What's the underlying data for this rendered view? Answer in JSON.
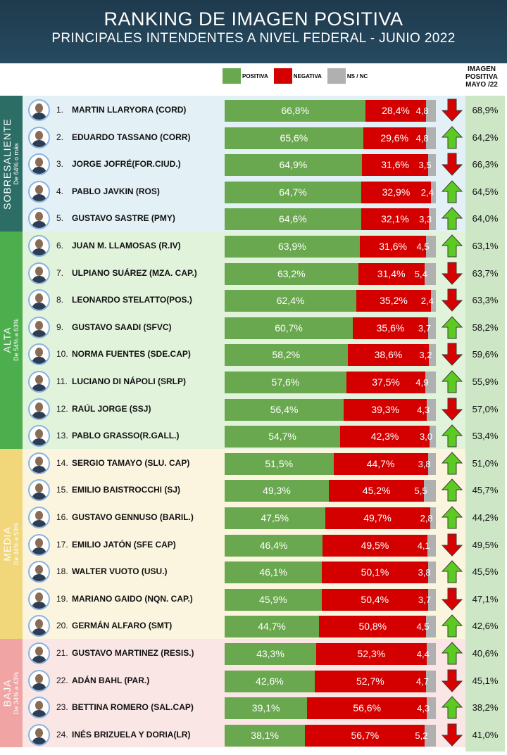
{
  "header": {
    "title": "RANKING DE IMAGEN POSITIVA",
    "subtitle": "PRINCIPALES INTENDENTES A NIVEL FEDERAL - JUNIO 2022"
  },
  "legend": {
    "positiva": "POSITIVA",
    "negativa": "NEGATIVA",
    "nsnc": "NS / NC"
  },
  "prev_header": [
    "IMAGEN",
    "POSITIVA",
    "MAYO /22"
  ],
  "colors": {
    "positive": "#6aa84f",
    "negative": "#d40000",
    "nsnc": "#b0b0b0",
    "up": "#5ccb21",
    "down": "#d90000",
    "header": "#264a60"
  },
  "groups": [
    {
      "label": "SOBRESALIENTE",
      "sub": "De 64% o más",
      "tab_color": "#2c6e66",
      "band_color": "#e3f0f6",
      "start": 0,
      "count": 5
    },
    {
      "label": "ALTA",
      "sub": "De 54% a 63%",
      "tab_color": "#4cae4c",
      "band_color": "#e2f3dc",
      "start": 5,
      "count": 8
    },
    {
      "label": "MEDIA",
      "sub": "De 44% a 53%",
      "tab_color": "#f1d77a",
      "band_color": "#fbf5df",
      "start": 13,
      "count": 7
    },
    {
      "label": "BAJA",
      "sub": "De 34% a 43%",
      "tab_color": "#f0a4a4",
      "band_color": "#fbe6e6",
      "start": 20,
      "count": 4
    }
  ],
  "chart_data": {
    "type": "bar",
    "stacked": true,
    "orientation": "horizontal",
    "title": "RANKING DE IMAGEN POSITIVA",
    "subtitle": "PRINCIPALES INTENDENTES A NIVEL FEDERAL - JUNIO 2022",
    "series_names": [
      "POSITIVA",
      "NEGATIVA",
      "NS / NC"
    ],
    "rows": [
      {
        "rank": "1.",
        "name": "MARTIN LLARYORA (CORD)",
        "pos": 66.8,
        "pos_label": "66,8%",
        "neg": 28.4,
        "neg_label": "28,4%",
        "ns": 4.8,
        "ns_label": "4,8",
        "trend": "down",
        "prev": "68,9%"
      },
      {
        "rank": "2.",
        "name": "EDUARDO TASSANO (CORR)",
        "pos": 65.6,
        "pos_label": "65,6%",
        "neg": 29.6,
        "neg_label": "29,6%",
        "ns": 4.8,
        "ns_label": "4,8",
        "trend": "up",
        "prev": "64,2%"
      },
      {
        "rank": "3.",
        "name": "JORGE JOFRÉ(FOR.CIUD.)",
        "pos": 64.9,
        "pos_label": "64,9%",
        "neg": 31.6,
        "neg_label": "31,6%",
        "ns": 3.5,
        "ns_label": "3,5",
        "trend": "down",
        "prev": "66,3%"
      },
      {
        "rank": "4.",
        "name": "PABLO JAVKIN (ROS)",
        "pos": 64.7,
        "pos_label": "64,7%",
        "neg": 32.9,
        "neg_label": "32,9%",
        "ns": 2.4,
        "ns_label": "2,4",
        "trend": "up",
        "prev": "64,5%"
      },
      {
        "rank": "5.",
        "name": "GUSTAVO SASTRE (PMY)",
        "pos": 64.6,
        "pos_label": "64,6%",
        "neg": 32.1,
        "neg_label": "32,1%",
        "ns": 3.3,
        "ns_label": "3,3",
        "trend": "up",
        "prev": "64,0%"
      },
      {
        "rank": "6.",
        "name": "JUAN M. LLAMOSAS (R.IV)",
        "pos": 63.9,
        "pos_label": "63,9%",
        "neg": 31.6,
        "neg_label": "31,6%",
        "ns": 4.5,
        "ns_label": "4,5",
        "trend": "up",
        "prev": "63,1%"
      },
      {
        "rank": "7.",
        "name": "ULPIANO SUÁREZ (MZA. CAP.)",
        "pos": 63.2,
        "pos_label": "63,2%",
        "neg": 31.4,
        "neg_label": "31,4%",
        "ns": 5.4,
        "ns_label": "5,4",
        "trend": "down",
        "prev": "63,7%"
      },
      {
        "rank": "8.",
        "name": "LEONARDO STELATTO(POS.)",
        "pos": 62.4,
        "pos_label": "62,4%",
        "neg": 35.2,
        "neg_label": "35,2%",
        "ns": 2.4,
        "ns_label": "2,4",
        "trend": "down",
        "prev": "63,3%"
      },
      {
        "rank": "9.",
        "name": "GUSTAVO SAADI (SFVC)",
        "pos": 60.7,
        "pos_label": "60,7%",
        "neg": 35.6,
        "neg_label": "35,6%",
        "ns": 3.7,
        "ns_label": "3,7",
        "trend": "up",
        "prev": "58,2%"
      },
      {
        "rank": "10.",
        "name": "NORMA FUENTES (SDE.CAP)",
        "pos": 58.2,
        "pos_label": "58,2%",
        "neg": 38.6,
        "neg_label": "38,6%",
        "ns": 3.2,
        "ns_label": "3,2",
        "trend": "down",
        "prev": "59,6%"
      },
      {
        "rank": "11.",
        "name": "LUCIANO DI NÁPOLI (SRLP)",
        "pos": 57.6,
        "pos_label": "57,6%",
        "neg": 37.5,
        "neg_label": "37,5%",
        "ns": 4.9,
        "ns_label": "4,9",
        "trend": "up",
        "prev": "55,9%"
      },
      {
        "rank": "12.",
        "name": "RAÚL JORGE (SSJ)",
        "pos": 56.4,
        "pos_label": "56,4%",
        "neg": 39.3,
        "neg_label": "39,3%",
        "ns": 4.3,
        "ns_label": "4,3",
        "trend": "down",
        "prev": "57,0%"
      },
      {
        "rank": "13.",
        "name": "PABLO GRASSO(R.GALL.)",
        "pos": 54.7,
        "pos_label": "54,7%",
        "neg": 42.3,
        "neg_label": "42,3%",
        "ns": 3.0,
        "ns_label": "3,0",
        "trend": "up",
        "prev": "53,4%"
      },
      {
        "rank": "14.",
        "name": "SERGIO TAMAYO (SLU. CAP)",
        "pos": 51.5,
        "pos_label": "51,5%",
        "neg": 44.7,
        "neg_label": "44,7%",
        "ns": 3.8,
        "ns_label": "3,8",
        "trend": "up",
        "prev": "51,0%"
      },
      {
        "rank": "15.",
        "name": "EMILIO BAISTROCCHI (SJ)",
        "pos": 49.3,
        "pos_label": "49,3%",
        "neg": 45.2,
        "neg_label": "45,2%",
        "ns": 5.5,
        "ns_label": "5,5",
        "trend": "up",
        "prev": "45,7%"
      },
      {
        "rank": "16.",
        "name": "GUSTAVO GENNUSO (BARIL.)",
        "pos": 47.5,
        "pos_label": "47,5%",
        "neg": 49.7,
        "neg_label": "49,7%",
        "ns": 2.8,
        "ns_label": "2,8",
        "trend": "up",
        "prev": "44,2%"
      },
      {
        "rank": "17.",
        "name": "EMILIO JATÓN (SFE CAP)",
        "pos": 46.4,
        "pos_label": "46,4%",
        "neg": 49.5,
        "neg_label": "49,5%",
        "ns": 4.1,
        "ns_label": "4,1",
        "trend": "down",
        "prev": "49,5%"
      },
      {
        "rank": "18.",
        "name": "WALTER VUOTO (USU.)",
        "pos": 46.1,
        "pos_label": "46,1%",
        "neg": 50.1,
        "neg_label": "50,1%",
        "ns": 3.8,
        "ns_label": "3,8",
        "trend": "up",
        "prev": "45,5%"
      },
      {
        "rank": "19.",
        "name": "MARIANO GAIDO (NQN. CAP.)",
        "pos": 45.9,
        "pos_label": "45,9%",
        "neg": 50.4,
        "neg_label": "50,4%",
        "ns": 3.7,
        "ns_label": "3,7",
        "trend": "down",
        "prev": "47,1%"
      },
      {
        "rank": "20.",
        "name": "GERMÁN ALFARO (SMT)",
        "pos": 44.7,
        "pos_label": "44,7%",
        "neg": 50.8,
        "neg_label": "50,8%",
        "ns": 4.5,
        "ns_label": "4,5",
        "trend": "up",
        "prev": "42,6%"
      },
      {
        "rank": "21.",
        "name": "GUSTAVO MARTINEZ (RESIS.)",
        "pos": 43.3,
        "pos_label": "43,3%",
        "neg": 52.3,
        "neg_label": "52,3%",
        "ns": 4.4,
        "ns_label": "4,4",
        "trend": "up",
        "prev": "40,6%"
      },
      {
        "rank": "22.",
        "name": "ADÁN BAHL (PAR.)",
        "pos": 42.6,
        "pos_label": "42,6%",
        "neg": 52.7,
        "neg_label": "52,7%",
        "ns": 4.7,
        "ns_label": "4,7",
        "trend": "down",
        "prev": "45,1%"
      },
      {
        "rank": "23.",
        "name": "BETTINA ROMERO (SAL.CAP)",
        "pos": 39.1,
        "pos_label": "39,1%",
        "neg": 56.6,
        "neg_label": "56,6%",
        "ns": 4.3,
        "ns_label": "4,3",
        "trend": "up",
        "prev": "38,2%"
      },
      {
        "rank": "24.",
        "name": "INÉS BRIZUELA Y DORIA(LR)",
        "pos": 38.1,
        "pos_label": "38,1%",
        "neg": 56.7,
        "neg_label": "56,7%",
        "ns": 5.2,
        "ns_label": "5,2",
        "trend": "down",
        "prev": "41,0%"
      }
    ]
  }
}
